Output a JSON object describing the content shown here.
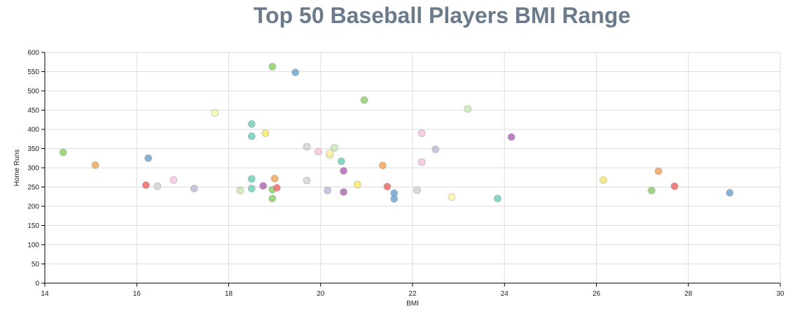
{
  "chart_data": {
    "type": "scatter",
    "title": "Top 50 Baseball Players BMI Range",
    "xlabel": "BMI",
    "ylabel": "Home Runs",
    "xlim": [
      14,
      30
    ],
    "ylim": [
      0,
      600
    ],
    "x_ticks": [
      14,
      16,
      18,
      20,
      22,
      24,
      26,
      28,
      30
    ],
    "y_ticks": [
      0,
      50,
      100,
      150,
      200,
      250,
      300,
      350,
      400,
      450,
      500,
      550,
      600
    ],
    "grid": true,
    "points": [
      {
        "x": 14.4,
        "y": 340,
        "color": "#8fd16b"
      },
      {
        "x": 15.1,
        "y": 307,
        "color": "#f2a65a"
      },
      {
        "x": 16.2,
        "y": 255,
        "color": "#ef6b6b"
      },
      {
        "x": 16.25,
        "y": 325,
        "color": "#6fa6d0"
      },
      {
        "x": 16.45,
        "y": 252,
        "color": "#d4d4d4"
      },
      {
        "x": 16.8,
        "y": 268,
        "color": "#f7c6e0"
      },
      {
        "x": 17.25,
        "y": 246,
        "color": "#c3b8da"
      },
      {
        "x": 17.7,
        "y": 443,
        "color": "#fbf7a8"
      },
      {
        "x": 18.25,
        "y": 241,
        "color": "#cbeab8"
      },
      {
        "x": 18.5,
        "y": 414,
        "color": "#6fcfbb"
      },
      {
        "x": 18.5,
        "y": 382,
        "color": "#6fcfbb"
      },
      {
        "x": 18.5,
        "y": 271,
        "color": "#6fcfbb"
      },
      {
        "x": 18.5,
        "y": 246,
        "color": "#6fcfbb"
      },
      {
        "x": 18.75,
        "y": 253,
        "color": "#b06bb6"
      },
      {
        "x": 18.8,
        "y": 390,
        "color": "#fbe86b"
      },
      {
        "x": 18.95,
        "y": 563,
        "color": "#8fd16b"
      },
      {
        "x": 18.95,
        "y": 243,
        "color": "#8fd16b"
      },
      {
        "x": 18.95,
        "y": 220,
        "color": "#8fd16b"
      },
      {
        "x": 19.0,
        "y": 272,
        "color": "#f2a65a"
      },
      {
        "x": 19.05,
        "y": 248,
        "color": "#ef6b6b"
      },
      {
        "x": 19.45,
        "y": 548,
        "color": "#6fa6d0"
      },
      {
        "x": 19.7,
        "y": 355,
        "color": "#d4d4d4"
      },
      {
        "x": 19.7,
        "y": 267,
        "color": "#d4d4d4"
      },
      {
        "x": 19.95,
        "y": 342,
        "color": "#f7c6e0"
      },
      {
        "x": 20.15,
        "y": 241,
        "color": "#c3b8da"
      },
      {
        "x": 20.2,
        "y": 333,
        "color": "#fbf7a8"
      },
      {
        "x": 20.2,
        "y": 338,
        "color": "#fbf7a8"
      },
      {
        "x": 20.3,
        "y": 352,
        "color": "#cbeab8"
      },
      {
        "x": 20.45,
        "y": 317,
        "color": "#6fcfbb"
      },
      {
        "x": 20.5,
        "y": 292,
        "color": "#b06bb6"
      },
      {
        "x": 20.5,
        "y": 237,
        "color": "#b06bb6"
      },
      {
        "x": 20.8,
        "y": 256,
        "color": "#fbe86b"
      },
      {
        "x": 20.95,
        "y": 476,
        "color": "#8fd16b"
      },
      {
        "x": 21.35,
        "y": 306,
        "color": "#f2a65a"
      },
      {
        "x": 21.45,
        "y": 251,
        "color": "#ef6b6b"
      },
      {
        "x": 21.6,
        "y": 234,
        "color": "#6fa6d0"
      },
      {
        "x": 21.6,
        "y": 219,
        "color": "#6fa6d0"
      },
      {
        "x": 22.1,
        "y": 242,
        "color": "#d4d4d4"
      },
      {
        "x": 22.2,
        "y": 390,
        "color": "#f7c6e0"
      },
      {
        "x": 22.2,
        "y": 315,
        "color": "#f7c6e0"
      },
      {
        "x": 22.5,
        "y": 348,
        "color": "#c3b8da"
      },
      {
        "x": 22.85,
        "y": 224,
        "color": "#fbf7a8"
      },
      {
        "x": 23.2,
        "y": 453,
        "color": "#cbeab8"
      },
      {
        "x": 23.85,
        "y": 220,
        "color": "#6fcfbb"
      },
      {
        "x": 24.15,
        "y": 380,
        "color": "#b06bb6"
      },
      {
        "x": 26.15,
        "y": 268,
        "color": "#fbe86b"
      },
      {
        "x": 27.2,
        "y": 241,
        "color": "#8fd16b"
      },
      {
        "x": 27.35,
        "y": 291,
        "color": "#f2a65a"
      },
      {
        "x": 27.7,
        "y": 252,
        "color": "#ef6b6b"
      },
      {
        "x": 28.9,
        "y": 235,
        "color": "#6fa6d0"
      }
    ]
  }
}
